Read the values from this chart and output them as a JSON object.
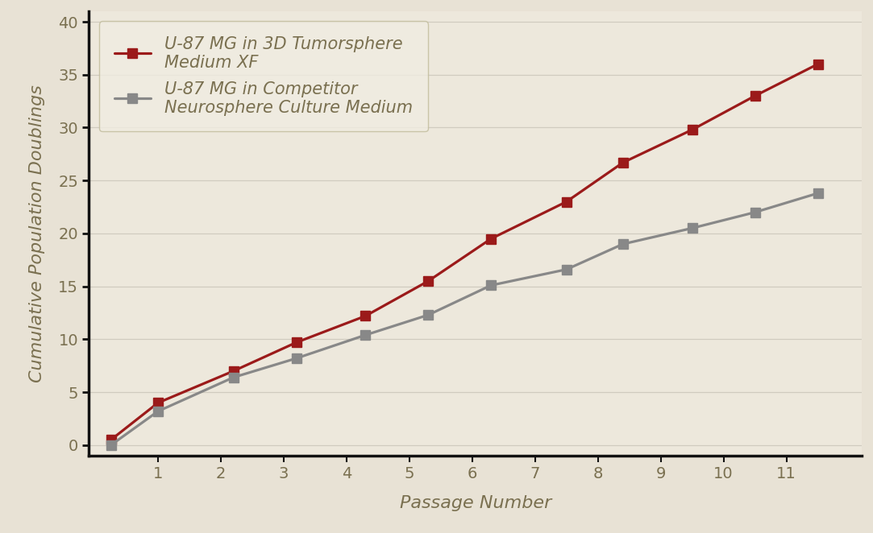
{
  "red_x": [
    0.25,
    1.0,
    2.2,
    3.2,
    4.3,
    5.3,
    6.3,
    7.5,
    8.4,
    9.5,
    10.5,
    11.5
  ],
  "red_y": [
    0.5,
    4.0,
    7.0,
    9.7,
    12.2,
    15.5,
    19.5,
    23.0,
    26.7,
    29.8,
    33.0,
    36.0
  ],
  "gray_x": [
    0.25,
    1.0,
    2.2,
    3.2,
    4.3,
    5.3,
    6.3,
    7.5,
    8.4,
    9.5,
    10.5,
    11.5
  ],
  "gray_y": [
    0.0,
    3.2,
    6.4,
    8.2,
    10.4,
    12.3,
    15.1,
    16.6,
    19.0,
    20.5,
    22.0,
    23.8
  ],
  "red_color": "#9b1a1a",
  "gray_color": "#888888",
  "bg_color": "#e8e2d5",
  "plot_bg_color": "#ede8dc",
  "grid_color": "#d0cbbf",
  "xlabel": "Passage Number",
  "ylabel": "Cumulative Population Doublings",
  "legend_label_red": "U-87 MG in 3D Tumorsphere\nMedium XF",
  "legend_label_gray": "U-87 MG in Competitor\nNeurosphere Culture Medium",
  "ylim": [
    -1,
    41
  ],
  "xlim": [
    -0.1,
    12.2
  ],
  "yticks": [
    0,
    5,
    10,
    15,
    20,
    25,
    30,
    35,
    40
  ],
  "xticks": [
    1,
    2,
    3,
    4,
    5,
    6,
    7,
    8,
    9,
    10,
    11
  ],
  "legend_text_color": "#7a7050",
  "axis_text_color": "#7a7050",
  "spine_color": "#111111",
  "linewidth": 2.3,
  "markersize": 9,
  "tick_label_fontsize": 14,
  "axis_label_fontsize": 16
}
